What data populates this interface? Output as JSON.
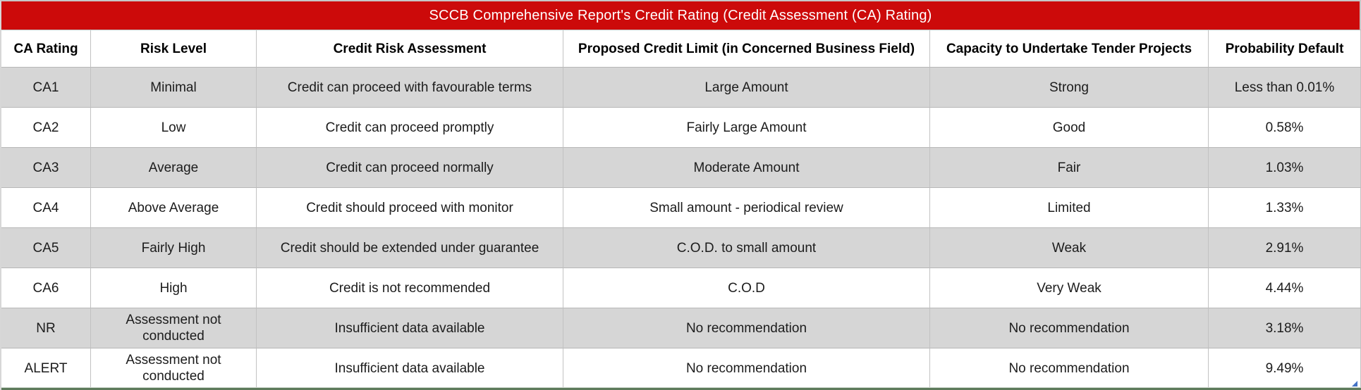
{
  "title": "SCCB Comprehensive Report's Credit Rating (Credit Assessment (CA) Rating)",
  "colors": {
    "title_bg": "#cc0a0a",
    "title_text": "#ffffff",
    "band_gray": "#d6d6d6",
    "grid_line": "#c2c2c2",
    "bottom_line_green": "#5d7a5b",
    "corner_marker_blue": "#4472c4"
  },
  "table": {
    "columns": [
      "CA Rating",
      "Risk Level",
      "Credit Risk Assessment",
      "Proposed Credit Limit (in Concerned Business Field)",
      "Capacity to Undertake Tender Projects",
      "Probability Default"
    ],
    "rows": [
      [
        "CA1",
        "Minimal",
        "Credit can proceed with favourable terms",
        "Large Amount",
        "Strong",
        "Less than 0.01%"
      ],
      [
        "CA2",
        "Low",
        "Credit can proceed promptly",
        "Fairly Large Amount",
        "Good",
        "0.58%"
      ],
      [
        "CA3",
        "Average",
        "Credit can proceed normally",
        "Moderate Amount",
        "Fair",
        "1.03%"
      ],
      [
        "CA4",
        "Above Average",
        "Credit should proceed with monitor",
        "Small amount - periodical review",
        "Limited",
        "1.33%"
      ],
      [
        "CA5",
        "Fairly High",
        "Credit should be extended under guarantee",
        "C.O.D. to small amount",
        "Weak",
        "2.91%"
      ],
      [
        "CA6",
        "High",
        "Credit is not recommended",
        "C.O.D",
        "Very Weak",
        "4.44%"
      ],
      [
        "NR",
        "Assessment not conducted",
        "Insufficient data available",
        "No recommendation",
        "No recommendation",
        "3.18%"
      ],
      [
        "ALERT",
        "Assessment not conducted",
        "Insufficient data available",
        "No recommendation",
        "No recommendation",
        "9.49%"
      ]
    ]
  }
}
